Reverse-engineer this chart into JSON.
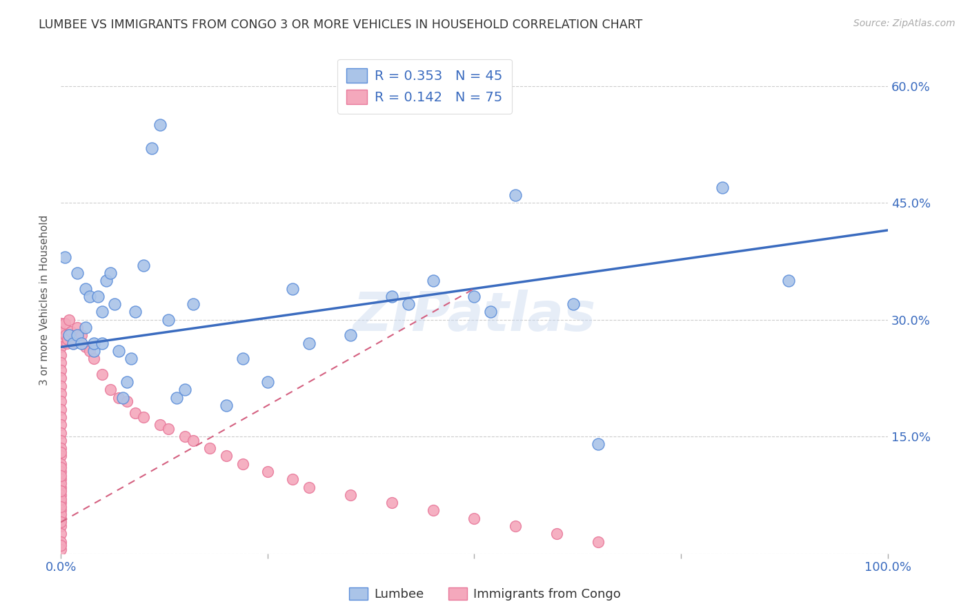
{
  "title": "LUMBEE VS IMMIGRANTS FROM CONGO 3 OR MORE VEHICLES IN HOUSEHOLD CORRELATION CHART",
  "source": "Source: ZipAtlas.com",
  "ylabel": "3 or more Vehicles in Household",
  "xlim": [
    0.0,
    1.0
  ],
  "ylim": [
    0.0,
    0.65
  ],
  "yticks": [
    0.0,
    0.15,
    0.3,
    0.45,
    0.6
  ],
  "xticks": [
    0.0,
    0.25,
    0.5,
    0.75,
    1.0
  ],
  "background_color": "#ffffff",
  "grid_color": "#cccccc",
  "watermark": "ZIPatlas",
  "lumbee_color": "#aac4e8",
  "lumbee_edge": "#5b8dd9",
  "congo_color": "#f4a8bc",
  "congo_edge": "#e8789a",
  "trend_lumbee_color": "#3a6bbf",
  "trend_congo_color": "#d46080",
  "lumbee_scatter_x": [
    0.005,
    0.01,
    0.015,
    0.02,
    0.02,
    0.025,
    0.03,
    0.03,
    0.035,
    0.04,
    0.04,
    0.045,
    0.05,
    0.05,
    0.055,
    0.06,
    0.065,
    0.07,
    0.075,
    0.08,
    0.085,
    0.09,
    0.1,
    0.11,
    0.12,
    0.13,
    0.14,
    0.15,
    0.16,
    0.2,
    0.22,
    0.25,
    0.28,
    0.3,
    0.35,
    0.4,
    0.42,
    0.45,
    0.5,
    0.52,
    0.55,
    0.62,
    0.65,
    0.8,
    0.88
  ],
  "lumbee_scatter_y": [
    0.38,
    0.28,
    0.27,
    0.28,
    0.36,
    0.27,
    0.34,
    0.29,
    0.33,
    0.26,
    0.27,
    0.33,
    0.27,
    0.31,
    0.35,
    0.36,
    0.32,
    0.26,
    0.2,
    0.22,
    0.25,
    0.31,
    0.37,
    0.52,
    0.55,
    0.3,
    0.2,
    0.21,
    0.32,
    0.19,
    0.25,
    0.22,
    0.34,
    0.27,
    0.28,
    0.33,
    0.32,
    0.35,
    0.33,
    0.31,
    0.46,
    0.32,
    0.14,
    0.47,
    0.35
  ],
  "congo_scatter_x": [
    0.0,
    0.0,
    0.0,
    0.0,
    0.0,
    0.0,
    0.0,
    0.0,
    0.0,
    0.0,
    0.0,
    0.0,
    0.0,
    0.0,
    0.0,
    0.0,
    0.0,
    0.0,
    0.0,
    0.0,
    0.0,
    0.0,
    0.0,
    0.0,
    0.0,
    0.0,
    0.0,
    0.0,
    0.0,
    0.0,
    0.0,
    0.0,
    0.0,
    0.0,
    0.0,
    0.0,
    0.0,
    0.0,
    0.0,
    0.0,
    0.005,
    0.006,
    0.007,
    0.008,
    0.01,
    0.012,
    0.015,
    0.02,
    0.025,
    0.03,
    0.035,
    0.04,
    0.05,
    0.06,
    0.07,
    0.08,
    0.09,
    0.1,
    0.12,
    0.13,
    0.15,
    0.16,
    0.18,
    0.2,
    0.22,
    0.25,
    0.28,
    0.3,
    0.35,
    0.4,
    0.45,
    0.5,
    0.55,
    0.6,
    0.65
  ],
  "congo_scatter_y": [
    0.295,
    0.285,
    0.275,
    0.265,
    0.255,
    0.245,
    0.235,
    0.225,
    0.215,
    0.205,
    0.195,
    0.185,
    0.175,
    0.165,
    0.155,
    0.145,
    0.135,
    0.125,
    0.115,
    0.105,
    0.095,
    0.085,
    0.075,
    0.065,
    0.055,
    0.045,
    0.035,
    0.025,
    0.015,
    0.005,
    0.01,
    0.05,
    0.07,
    0.09,
    0.11,
    0.13,
    0.04,
    0.06,
    0.08,
    0.1,
    0.295,
    0.28,
    0.27,
    0.275,
    0.3,
    0.285,
    0.27,
    0.29,
    0.28,
    0.265,
    0.26,
    0.25,
    0.23,
    0.21,
    0.2,
    0.195,
    0.18,
    0.175,
    0.165,
    0.16,
    0.15,
    0.145,
    0.135,
    0.125,
    0.115,
    0.105,
    0.095,
    0.085,
    0.075,
    0.065,
    0.055,
    0.045,
    0.035,
    0.025,
    0.015
  ],
  "lumbee_trend_x": [
    0.0,
    1.0
  ],
  "lumbee_trend_y": [
    0.265,
    0.415
  ],
  "congo_trend_x": [
    0.0,
    0.5
  ],
  "congo_trend_y": [
    0.04,
    0.34
  ],
  "legend_label_lumbee": "Lumbee",
  "legend_label_congo": "Immigrants from Congo",
  "legend_r_lumbee": "R = 0.353",
  "legend_n_lumbee": "N = 45",
  "legend_r_congo": "R = 0.142",
  "legend_n_congo": "N = 75"
}
